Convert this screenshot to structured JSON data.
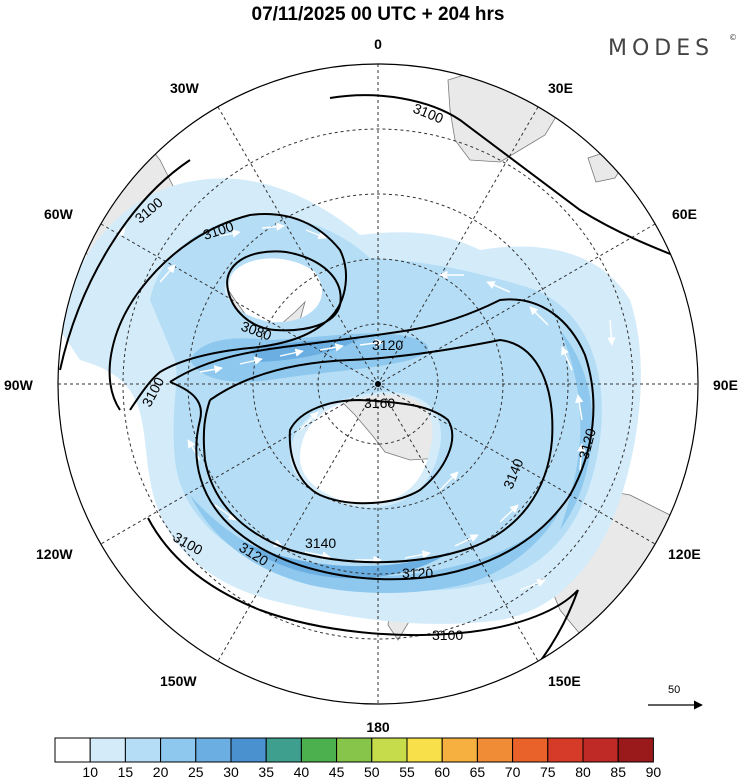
{
  "title": "07/11/2025  00 UTC  + 204 hrs",
  "brand": {
    "name": "MODES",
    "mark": "©"
  },
  "longitude_labels": {
    "lon_0": "0",
    "lon_30e": "30E",
    "lon_60e": "60E",
    "lon_90e": "90E",
    "lon_120e": "120E",
    "lon_150e": "150E",
    "lon_180": "180",
    "lon_150w": "150W",
    "lon_120w": "120W",
    "lon_90w": "90W",
    "lon_60w": "60W",
    "lon_30w": "30W"
  },
  "contour_labels": {
    "c3100_a": "3100",
    "c3100_b": "3100",
    "c3100_c": "3100",
    "c3100_d": "3100",
    "c3100_e": "3100",
    "c3080": "3080",
    "c3120_a": "3120",
    "c3120_b": "3120",
    "c3120_c": "3120",
    "c3120_d": "3120",
    "c3140_a": "3140",
    "c3140_b": "3140",
    "c3160": "3160"
  },
  "reference_vector": {
    "label": "50"
  },
  "colorbar": {
    "labels": [
      "10",
      "15",
      "20",
      "25",
      "30",
      "35",
      "40",
      "45",
      "50",
      "55",
      "60",
      "65",
      "70",
      "75",
      "80",
      "85",
      "90"
    ],
    "colors": [
      "#ffffff",
      "#d4ecfa",
      "#b5def6",
      "#8ec8ee",
      "#6aaee2",
      "#4a92cf",
      "#3e9f8e",
      "#4cb04e",
      "#86c44a",
      "#c6dc4a",
      "#f7e04a",
      "#f5b040",
      "#f08c35",
      "#e8622a",
      "#d63a28",
      "#bf2a26",
      "#9a1a1c"
    ]
  }
}
